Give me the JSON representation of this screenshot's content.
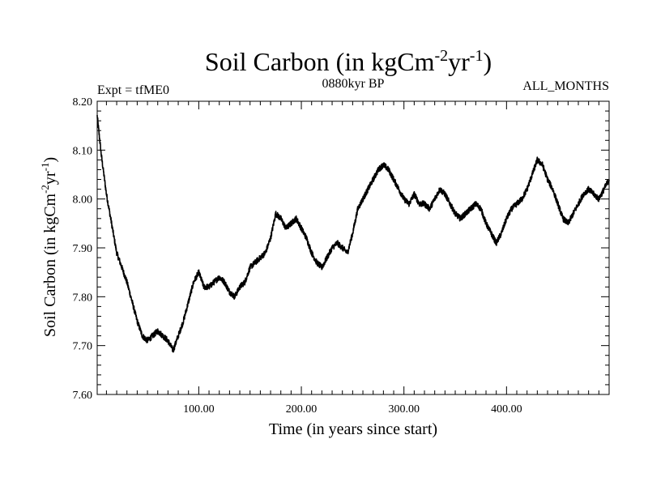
{
  "chart_data": {
    "type": "line",
    "title": {
      "base": "Soil Carbon (in kgCm",
      "exp1": "-2",
      "mid": "yr",
      "exp2": "-1",
      "end": ")"
    },
    "expt_label": "Expt = tfME0",
    "period_label": "0880kyr BP",
    "months_label": "ALL_MONTHS",
    "xlabel": "Time (in years since start)",
    "ylabel": {
      "base": "Soil Carbon (in kgCm",
      "exp1": "-2",
      "mid": "yr",
      "exp2": "-1",
      "end": ")"
    },
    "xlim": [
      1,
      500
    ],
    "ylim": [
      7.6,
      8.2
    ],
    "xticks": [
      100,
      200,
      300,
      400
    ],
    "xtick_labels": [
      "100.00",
      "200.00",
      "300.00",
      "400.00"
    ],
    "yticks": [
      7.6,
      7.7,
      7.8,
      7.9,
      8.0,
      8.1,
      8.2
    ],
    "ytick_labels": [
      "7.60",
      "7.70",
      "7.80",
      "7.90",
      "8.00",
      "8.10",
      "8.20"
    ],
    "series": [
      {
        "name": "Soil Carbon",
        "color": "#000000",
        "x": [
          1,
          5,
          10,
          15,
          20,
          25,
          30,
          35,
          40,
          45,
          50,
          55,
          60,
          65,
          70,
          75,
          80,
          85,
          90,
          95,
          100,
          105,
          110,
          115,
          120,
          125,
          130,
          135,
          140,
          145,
          150,
          155,
          160,
          165,
          170,
          175,
          180,
          185,
          190,
          195,
          200,
          205,
          210,
          215,
          220,
          225,
          230,
          235,
          240,
          245,
          250,
          255,
          260,
          265,
          270,
          275,
          280,
          285,
          290,
          295,
          300,
          305,
          310,
          315,
          320,
          325,
          330,
          335,
          340,
          345,
          350,
          355,
          360,
          365,
          370,
          375,
          380,
          385,
          390,
          395,
          400,
          405,
          410,
          415,
          420,
          425,
          430,
          435,
          440,
          445,
          450,
          455,
          460,
          465,
          470,
          475,
          480,
          485,
          490,
          495,
          500
        ],
        "y": [
          8.17,
          8.09,
          8.01,
          7.95,
          7.89,
          7.86,
          7.83,
          7.79,
          7.75,
          7.72,
          7.71,
          7.72,
          7.73,
          7.72,
          7.71,
          7.69,
          7.72,
          7.75,
          7.79,
          7.83,
          7.85,
          7.82,
          7.82,
          7.83,
          7.84,
          7.83,
          7.81,
          7.8,
          7.82,
          7.83,
          7.86,
          7.87,
          7.88,
          7.89,
          7.92,
          7.97,
          7.96,
          7.94,
          7.95,
          7.96,
          7.94,
          7.92,
          7.89,
          7.87,
          7.86,
          7.88,
          7.9,
          7.91,
          7.9,
          7.89,
          7.93,
          7.98,
          8.0,
          8.02,
          8.04,
          8.06,
          8.07,
          8.06,
          8.04,
          8.02,
          8.0,
          7.99,
          8.01,
          7.99,
          7.99,
          7.98,
          8.0,
          8.02,
          8.01,
          7.99,
          7.97,
          7.96,
          7.97,
          7.98,
          7.99,
          7.98,
          7.95,
          7.93,
          7.91,
          7.93,
          7.96,
          7.98,
          7.99,
          8.0,
          8.02,
          8.05,
          8.08,
          8.07,
          8.04,
          8.02,
          7.99,
          7.96,
          7.95,
          7.97,
          7.99,
          8.01,
          8.02,
          8.01,
          8.0,
          8.02,
          8.04
        ]
      }
    ]
  }
}
